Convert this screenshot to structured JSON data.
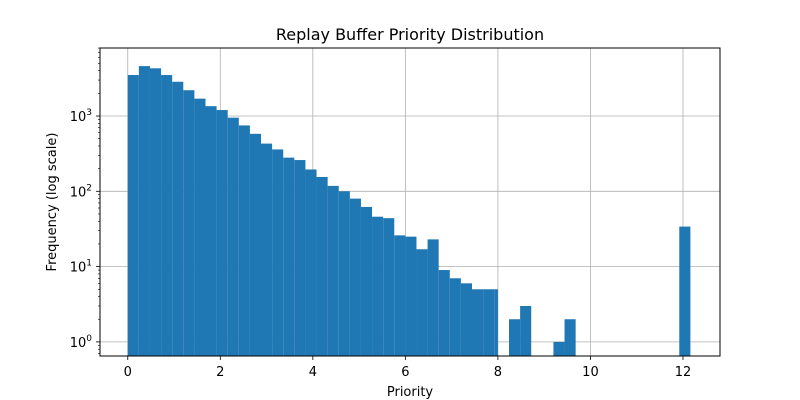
{
  "chart_data": {
    "type": "bar",
    "title": "Replay Buffer Priority Distribution",
    "xlabel": "Priority",
    "ylabel": "Frequency (log scale)",
    "yscale": "log",
    "xlim": [
      -0.6,
      12.8
    ],
    "ylim": [
      0.65,
      8000
    ],
    "grid": true,
    "bar_color": "#1f77b4",
    "x_ticks": [
      {
        "value": 0,
        "label": "0"
      },
      {
        "value": 2,
        "label": "2"
      },
      {
        "value": 4,
        "label": "4"
      },
      {
        "value": 6,
        "label": "6"
      },
      {
        "value": 8,
        "label": "8"
      },
      {
        "value": 10,
        "label": "10"
      },
      {
        "value": 12,
        "label": "12"
      }
    ],
    "y_ticks": [
      {
        "value": 1,
        "base": "10",
        "exp": "0"
      },
      {
        "value": 10,
        "base": "10",
        "exp": "1"
      },
      {
        "value": 100,
        "base": "10",
        "exp": "2"
      },
      {
        "value": 1000,
        "base": "10",
        "exp": "3"
      }
    ],
    "bins": [
      {
        "x0": 0.0,
        "x1": 0.24,
        "value": 3500
      },
      {
        "x0": 0.24,
        "x1": 0.48,
        "value": 4600
      },
      {
        "x0": 0.48,
        "x1": 0.72,
        "value": 4300
      },
      {
        "x0": 0.72,
        "x1": 0.96,
        "value": 3500
      },
      {
        "x0": 0.96,
        "x1": 1.2,
        "value": 2850
      },
      {
        "x0": 1.2,
        "x1": 1.44,
        "value": 2200
      },
      {
        "x0": 1.44,
        "x1": 1.68,
        "value": 1700
      },
      {
        "x0": 1.68,
        "x1": 1.92,
        "value": 1350
      },
      {
        "x0": 1.92,
        "x1": 2.16,
        "value": 1200
      },
      {
        "x0": 2.16,
        "x1": 2.4,
        "value": 950
      },
      {
        "x0": 2.4,
        "x1": 2.64,
        "value": 750
      },
      {
        "x0": 2.64,
        "x1": 2.88,
        "value": 580
      },
      {
        "x0": 2.88,
        "x1": 3.12,
        "value": 430
      },
      {
        "x0": 3.12,
        "x1": 3.36,
        "value": 360
      },
      {
        "x0": 3.36,
        "x1": 3.6,
        "value": 280
      },
      {
        "x0": 3.6,
        "x1": 3.84,
        "value": 260
      },
      {
        "x0": 3.84,
        "x1": 4.08,
        "value": 195
      },
      {
        "x0": 4.08,
        "x1": 4.32,
        "value": 155
      },
      {
        "x0": 4.32,
        "x1": 4.56,
        "value": 118
      },
      {
        "x0": 4.56,
        "x1": 4.8,
        "value": 100
      },
      {
        "x0": 4.8,
        "x1": 5.04,
        "value": 80
      },
      {
        "x0": 5.04,
        "x1": 5.28,
        "value": 62
      },
      {
        "x0": 5.28,
        "x1": 5.52,
        "value": 46
      },
      {
        "x0": 5.52,
        "x1": 5.76,
        "value": 44
      },
      {
        "x0": 5.76,
        "x1": 6.0,
        "value": 26
      },
      {
        "x0": 6.0,
        "x1": 6.24,
        "value": 25
      },
      {
        "x0": 6.24,
        "x1": 6.48,
        "value": 17
      },
      {
        "x0": 6.48,
        "x1": 6.72,
        "value": 23
      },
      {
        "x0": 6.72,
        "x1": 6.96,
        "value": 9
      },
      {
        "x0": 6.96,
        "x1": 7.2,
        "value": 7
      },
      {
        "x0": 7.2,
        "x1": 7.44,
        "value": 6
      },
      {
        "x0": 7.44,
        "x1": 7.68,
        "value": 5
      },
      {
        "x0": 7.68,
        "x1": 7.92,
        "value": 5
      },
      {
        "x0": 7.92,
        "x1": 8.0,
        "value": 5
      },
      {
        "x0": 8.24,
        "x1": 8.48,
        "value": 2
      },
      {
        "x0": 8.48,
        "x1": 8.72,
        "value": 3
      },
      {
        "x0": 9.2,
        "x1": 9.44,
        "value": 1
      },
      {
        "x0": 9.44,
        "x1": 9.68,
        "value": 2
      },
      {
        "x0": 11.92,
        "x1": 12.16,
        "value": 34
      }
    ]
  }
}
